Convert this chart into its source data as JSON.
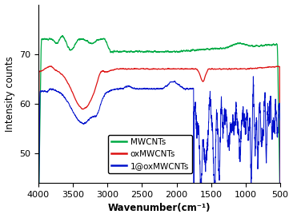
{
  "title": "",
  "xlabel": "Wavenumber(cm⁻¹)",
  "ylabel": "Intensity counts",
  "xlim": [
    4000,
    500
  ],
  "ylim": [
    44,
    80
  ],
  "yticks": [
    50,
    60,
    70
  ],
  "xticks": [
    4000,
    3500,
    3000,
    2500,
    2000,
    1500,
    1000,
    500
  ],
  "legend_labels": [
    "MWCNTs",
    "oxMWCNTs",
    "1@oxMWCNTs"
  ],
  "colors": {
    "mwcnt": "#00aa44",
    "ox": "#dd1111",
    "one_ox": "#0011cc"
  },
  "background": "#ffffff"
}
